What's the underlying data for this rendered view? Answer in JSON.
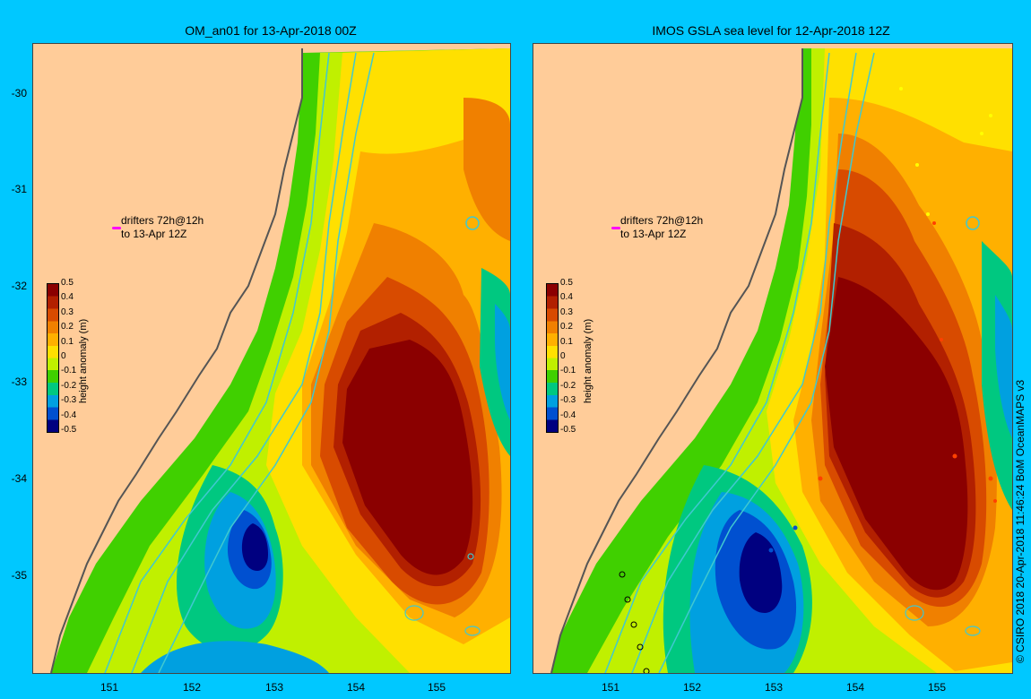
{
  "panels": [
    {
      "title": "OM_an01 for 13-Apr-2018 00Z",
      "drifter_label": [
        "drifters 72h@12h",
        "to 13-Apr 12Z"
      ]
    },
    {
      "title": "IMOS GSLA sea level  for 12-Apr-2018 12Z",
      "drifter_label": [
        "drifters 72h@12h",
        "to 13-Apr 12Z"
      ]
    }
  ],
  "axes": {
    "y_ticks": [
      "-30",
      "-31",
      "-32",
      "-33",
      "-34",
      "-35"
    ],
    "x_ticks": [
      "151",
      "152",
      "153",
      "154",
      "155"
    ]
  },
  "colorbar": {
    "title": "height anomaly (m)",
    "labels": [
      "0.5",
      "0.4",
      "0.3",
      "0.2",
      "0.1",
      "0",
      "-0.1",
      "-0.2",
      "-0.3",
      "-0.4",
      "-0.5"
    ],
    "colors": [
      "#8b0000",
      "#b22000",
      "#d84b00",
      "#f08000",
      "#ffb000",
      "#ffe000",
      "#c0f000",
      "#40d000",
      "#00c880",
      "#00a0e0",
      "#0050d0",
      "#000080"
    ]
  },
  "land_color": "#ffcc99",
  "credit": "© CSIRO 2018   20-Apr-2018 11:46:24 BoM OceanMAPS v3"
}
